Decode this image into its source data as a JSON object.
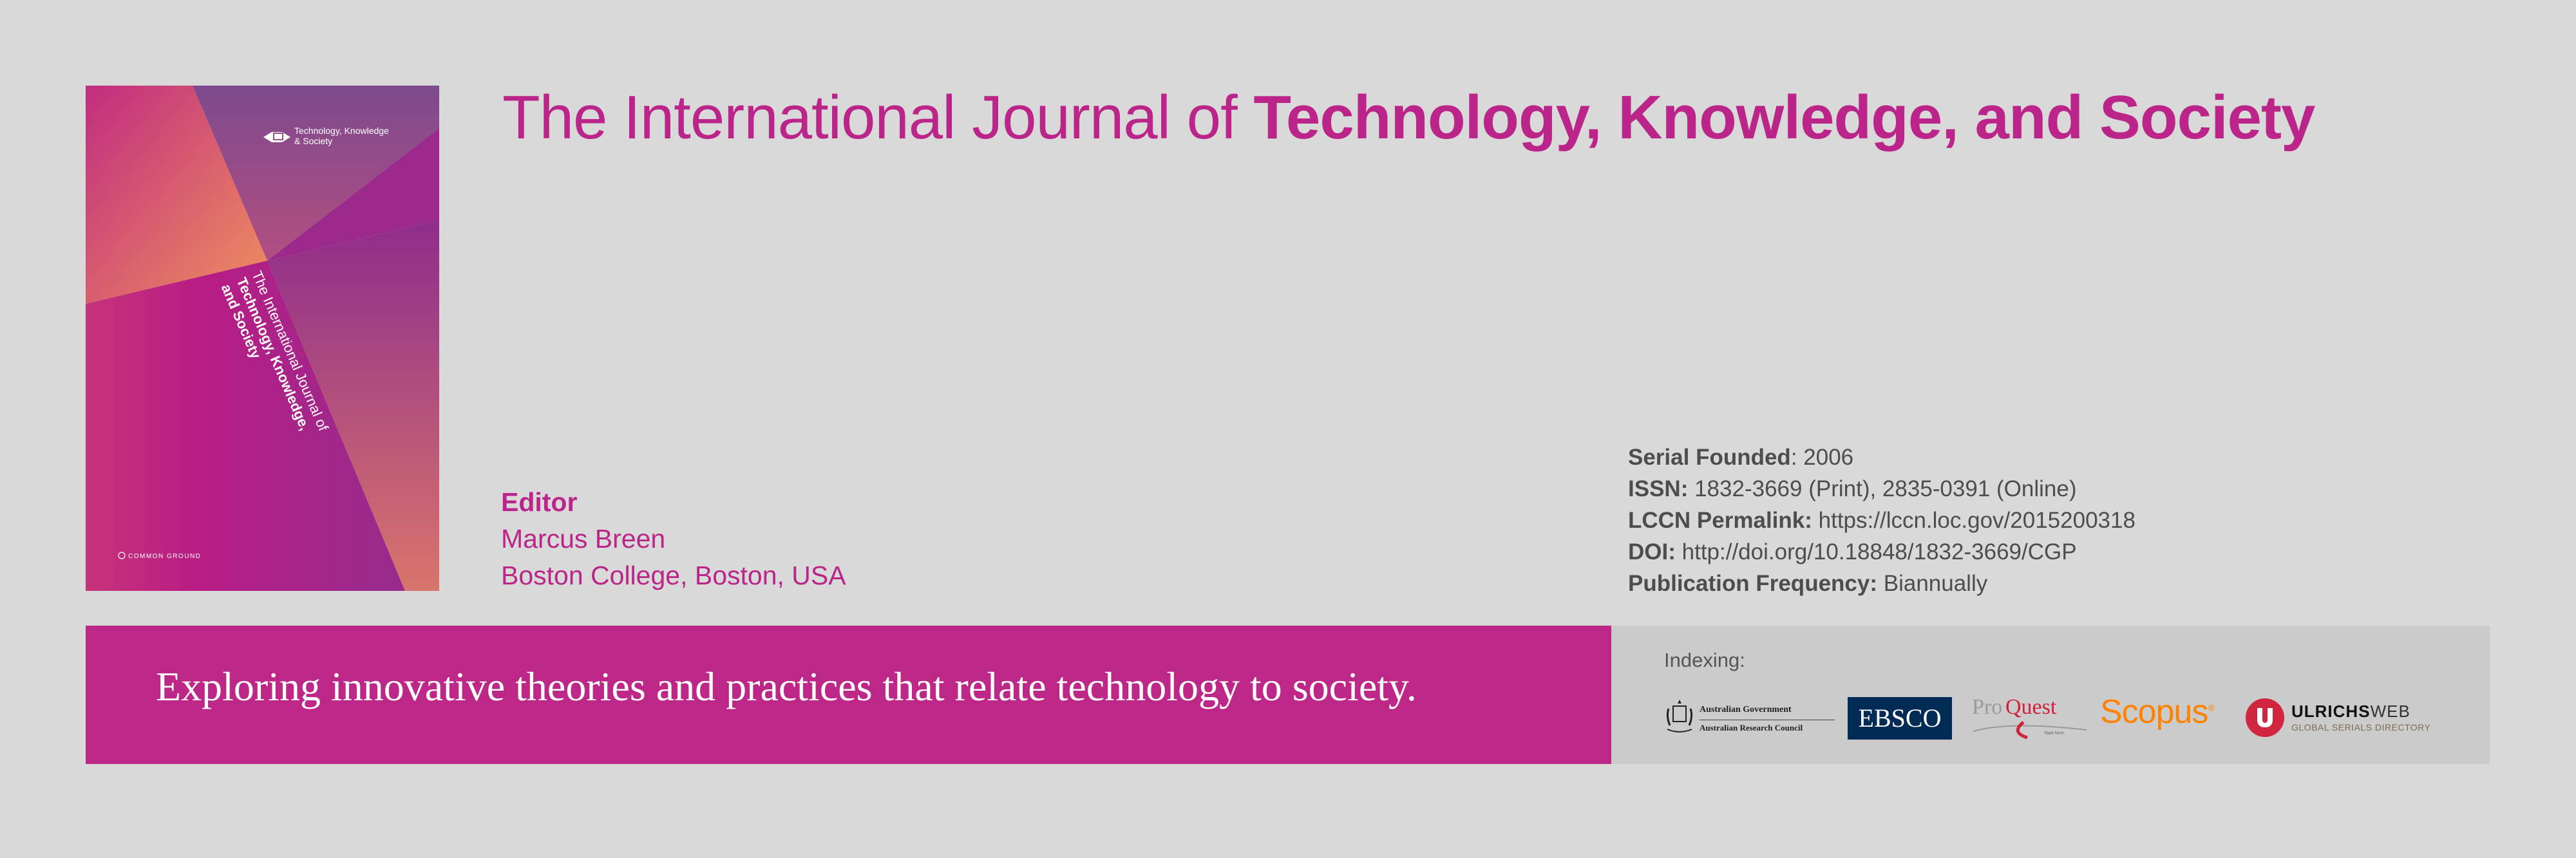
{
  "cover": {
    "brand": "Technology, Knowledge & Society",
    "brand_line1": "Technology, Knowledge",
    "brand_line2": "& Society",
    "title_lines": [
      "The International Journal of",
      "Technology, Knowledge,",
      "and Society"
    ],
    "publisher": "COMMON GROUND"
  },
  "header": {
    "title_prefix": "The International Journal of ",
    "title_bold": "Technology, Knowledge, and Society"
  },
  "editor": {
    "label": "Editor",
    "name": "Marcus Breen",
    "affiliation": "Boston College, Boston, USA"
  },
  "info": [
    {
      "label": "Serial Founded",
      "sep": ": ",
      "value": "2006"
    },
    {
      "label": "ISSN:",
      "sep": " ",
      "value": "1832-3669 (Print), 2835-0391 (Online)"
    },
    {
      "label": "LCCN Permalink:",
      "sep": " ",
      "value": "https://lccn.loc.gov/2015200318"
    },
    {
      "label": "DOI:",
      "sep": " ",
      "value": "http://doi.org/10.18848/1832-3669/CGP"
    },
    {
      "label": "Publication Frequency:",
      "sep": " ",
      "value": "Biannually"
    }
  ],
  "tagline": "Exploring innovative theories and practices that relate technology to society.",
  "indexing": {
    "label": "Indexing:",
    "logos": {
      "arc_line1": "Australian Government",
      "arc_line2": "Australian Research Council",
      "ebsco": "EBSCO",
      "proquest_a": "Pro",
      "proquest_b": "Quest",
      "proquest_sub": "Start here.",
      "scopus": "Scopus",
      "ulrichs_a": "ULRICHS",
      "ulrichs_b": "WEB",
      "ulrichs_sub": "GLOBAL SERIALS DIRECTORY"
    }
  },
  "colors": {
    "brand_magenta": "#bd2788",
    "background": "#d9d9d9",
    "ebsco_navy": "#002b55",
    "scopus_orange": "#ff8200",
    "ulrichs_red": "#d0263f"
  }
}
